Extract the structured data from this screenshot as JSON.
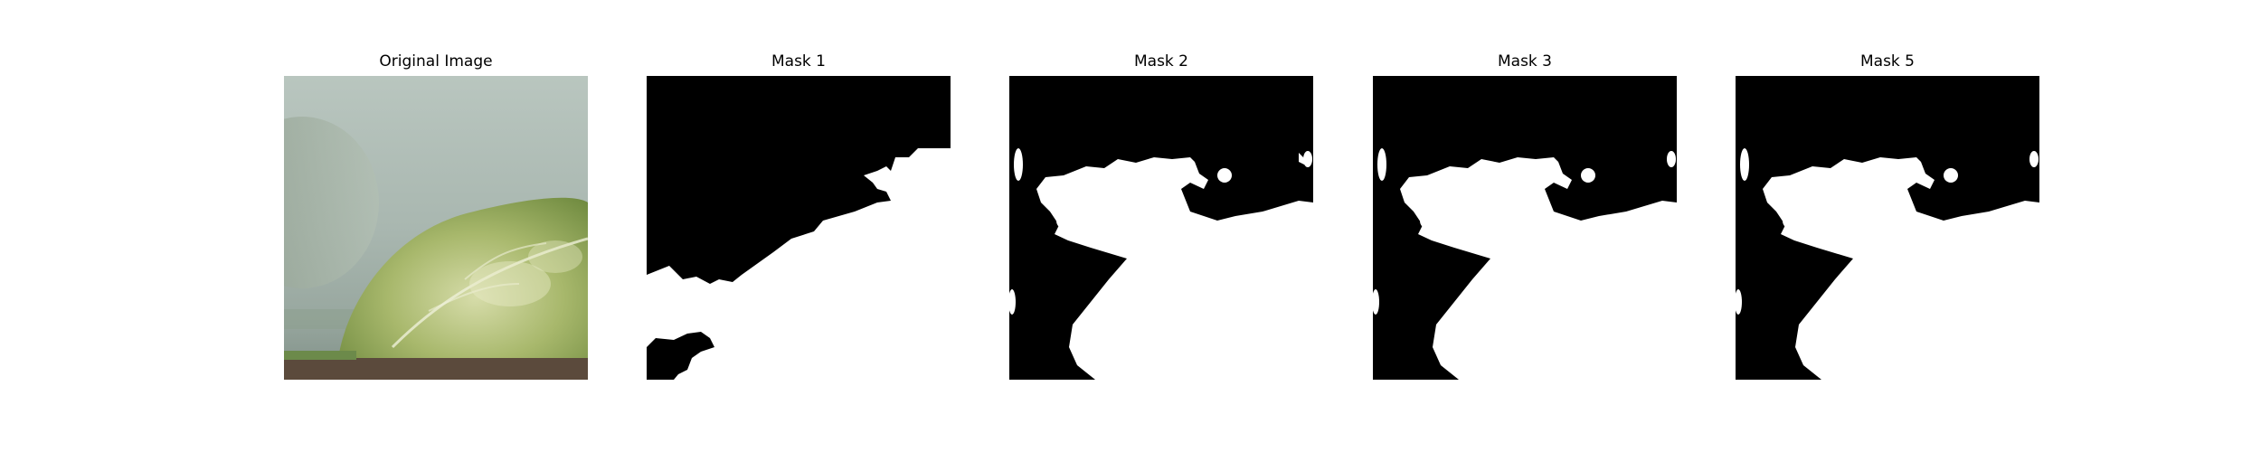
{
  "figure": {
    "panels": [
      {
        "title": "Original Image",
        "kind": "photo",
        "description": "close-up of variegated green leaf against grey-green background"
      },
      {
        "title": "Mask 1",
        "kind": "mask"
      },
      {
        "title": "Mask 2",
        "kind": "mask"
      },
      {
        "title": "Mask 3",
        "kind": "mask"
      },
      {
        "title": "Mask 5",
        "kind": "mask"
      }
    ]
  }
}
